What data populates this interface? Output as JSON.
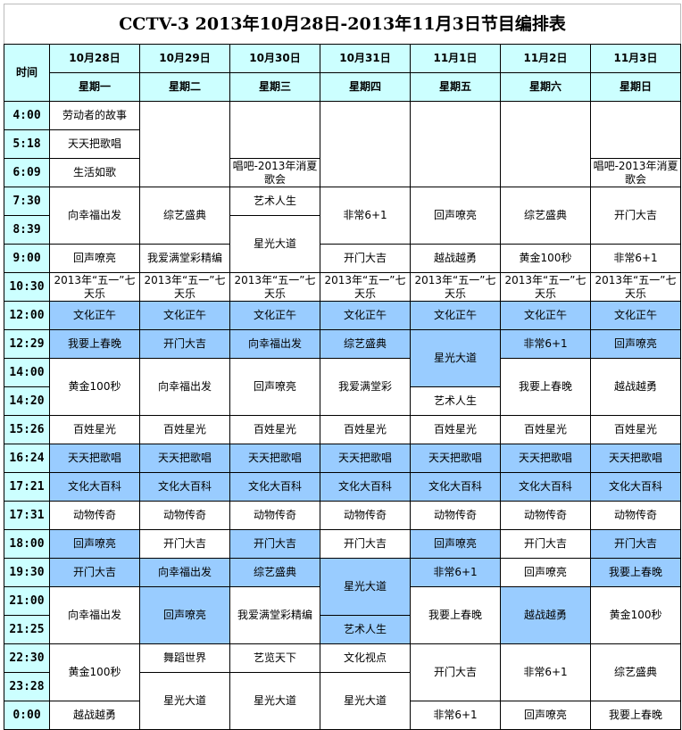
{
  "title": "CCTV-3  2013年10月28日-2013年11月3日节目编排表",
  "time_header": "时间",
  "dates": [
    "10月28日",
    "10月29日",
    "10月30日",
    "10月31日",
    "11月1日",
    "11月2日",
    "11月3日"
  ],
  "weekdays": [
    "星期一",
    "星期二",
    "星期三",
    "星期四",
    "星期五",
    "星期六",
    "星期日"
  ],
  "colors": {
    "header": "#ccffff",
    "highlight": "#99ccff"
  },
  "times": [
    "4:00",
    "5:18",
    "6:09",
    "7:30",
    "8:39",
    "9:00",
    "10:30",
    "12:00",
    "12:29",
    "14:00",
    "14:20",
    "15:26",
    "16:24",
    "17:21",
    "17:31",
    "18:00",
    "19:30",
    "21:00",
    "21:25",
    "22:30",
    "23:28",
    "0:00"
  ],
  "columns": [
    [
      {
        "text": "劳动者的故事",
        "slots": 1
      },
      {
        "text": "天天把歌唱",
        "slots": 1
      },
      {
        "text": "生活如歌",
        "slots": 1
      },
      {
        "text": "向幸福出发",
        "slots": 2
      },
      {
        "text": "回声嘹亮",
        "slots": 1
      },
      {
        "text": "2013年“五一”七天乐",
        "slots": 1
      },
      {
        "text": "文化正午",
        "slots": 1,
        "highlight": true
      },
      {
        "text": "我要上春晚",
        "slots": 1,
        "highlight": true
      },
      {
        "text": "黄金100秒",
        "slots": 2
      },
      {
        "text": "百姓星光",
        "slots": 1
      },
      {
        "text": "天天把歌唱",
        "slots": 1,
        "highlight": true
      },
      {
        "text": "文化大百科",
        "slots": 1,
        "highlight": true
      },
      {
        "text": "动物传奇",
        "slots": 1
      },
      {
        "text": "回声嘹亮",
        "slots": 1,
        "highlight": true
      },
      {
        "text": "开门大吉",
        "slots": 1,
        "highlight": true
      },
      {
        "text": "向幸福出发",
        "slots": 2
      },
      {
        "text": "黄金100秒",
        "slots": 2
      },
      {
        "text": "越战越勇",
        "slots": 1
      }
    ],
    [
      {
        "text": "",
        "slots": 3
      },
      {
        "text": "综艺盛典",
        "slots": 2
      },
      {
        "text": "我爱满堂彩精编",
        "slots": 1
      },
      {
        "text": "2013年“五一”七天乐",
        "slots": 1
      },
      {
        "text": "文化正午",
        "slots": 1,
        "highlight": true
      },
      {
        "text": "开门大吉",
        "slots": 1,
        "highlight": true
      },
      {
        "text": "向幸福出发",
        "slots": 2
      },
      {
        "text": "百姓星光",
        "slots": 1
      },
      {
        "text": "天天把歌唱",
        "slots": 1,
        "highlight": true
      },
      {
        "text": "文化大百科",
        "slots": 1,
        "highlight": true
      },
      {
        "text": "动物传奇",
        "slots": 1
      },
      {
        "text": "开门大吉",
        "slots": 1
      },
      {
        "text": "向幸福出发",
        "slots": 1,
        "highlight": true
      },
      {
        "text": "回声嘹亮",
        "slots": 2,
        "highlight": true
      },
      {
        "text": "舞蹈世界",
        "slots": 1
      },
      {
        "text": "星光大道",
        "slots": 2
      }
    ],
    [
      {
        "text": "",
        "slots": 2
      },
      {
        "text": "唱吧-2013年消夏歌会",
        "slots": 1
      },
      {
        "text": "艺术人生",
        "slots": 1
      },
      {
        "text": "星光大道",
        "slots": 2
      },
      {
        "text": "2013年“五一”七天乐",
        "slots": 1
      },
      {
        "text": "文化正午",
        "slots": 1,
        "highlight": true
      },
      {
        "text": "向幸福出发",
        "slots": 1,
        "highlight": true
      },
      {
        "text": "回声嘹亮",
        "slots": 2
      },
      {
        "text": "百姓星光",
        "slots": 1
      },
      {
        "text": "天天把歌唱",
        "slots": 1,
        "highlight": true
      },
      {
        "text": "文化大百科",
        "slots": 1,
        "highlight": true
      },
      {
        "text": "动物传奇",
        "slots": 1
      },
      {
        "text": "开门大吉",
        "slots": 1,
        "highlight": true
      },
      {
        "text": "综艺盛典",
        "slots": 1,
        "highlight": true
      },
      {
        "text": "我爱满堂彩精编",
        "slots": 2
      },
      {
        "text": "艺览天下",
        "slots": 1
      },
      {
        "text": "星光大道",
        "slots": 2
      }
    ],
    [
      {
        "text": "",
        "slots": 3
      },
      {
        "text": "非常6+1",
        "slots": 2
      },
      {
        "text": "开门大吉",
        "slots": 1
      },
      {
        "text": "2013年“五一”七天乐",
        "slots": 1
      },
      {
        "text": "文化正午",
        "slots": 1,
        "highlight": true
      },
      {
        "text": "综艺盛典",
        "slots": 1,
        "highlight": true
      },
      {
        "text": "我爱满堂彩",
        "slots": 2
      },
      {
        "text": "百姓星光",
        "slots": 1
      },
      {
        "text": "天天把歌唱",
        "slots": 1,
        "highlight": true
      },
      {
        "text": "文化大百科",
        "slots": 1,
        "highlight": true
      },
      {
        "text": "动物传奇",
        "slots": 1
      },
      {
        "text": "开门大吉",
        "slots": 1
      },
      {
        "text": "星光大道",
        "slots": 2,
        "highlight": true
      },
      {
        "text": "艺术人生",
        "slots": 1,
        "highlight": true
      },
      {
        "text": "文化视点",
        "slots": 1
      },
      {
        "text": "星光大道",
        "slots": 2
      }
    ],
    [
      {
        "text": "",
        "slots": 3
      },
      {
        "text": "回声嘹亮",
        "slots": 2
      },
      {
        "text": "越战越勇",
        "slots": 1
      },
      {
        "text": "2013年“五一”七天乐",
        "slots": 1
      },
      {
        "text": "文化正午",
        "slots": 1,
        "highlight": true
      },
      {
        "text": "星光大道",
        "slots": 2,
        "highlight": true
      },
      {
        "text": "艺术人生",
        "slots": 1
      },
      {
        "text": "百姓星光",
        "slots": 1
      },
      {
        "text": "天天把歌唱",
        "slots": 1,
        "highlight": true
      },
      {
        "text": "文化大百科",
        "slots": 1,
        "highlight": true
      },
      {
        "text": "动物传奇",
        "slots": 1
      },
      {
        "text": "回声嘹亮",
        "slots": 1,
        "highlight": true
      },
      {
        "text": "非常6+1",
        "slots": 1,
        "highlight": true
      },
      {
        "text": "我要上春晚",
        "slots": 2
      },
      {
        "text": "开门大吉",
        "slots": 2
      },
      {
        "text": "非常6+1",
        "slots": 1
      }
    ],
    [
      {
        "text": "",
        "slots": 3
      },
      {
        "text": "综艺盛典",
        "slots": 2
      },
      {
        "text": "黄金100秒",
        "slots": 1
      },
      {
        "text": "2013年“五一”七天乐",
        "slots": 1
      },
      {
        "text": "文化正午",
        "slots": 1,
        "highlight": true
      },
      {
        "text": "非常6+1",
        "slots": 1,
        "highlight": true
      },
      {
        "text": "我要上春晚",
        "slots": 2
      },
      {
        "text": "百姓星光",
        "slots": 1
      },
      {
        "text": "天天把歌唱",
        "slots": 1,
        "highlight": true
      },
      {
        "text": "文化大百科",
        "slots": 1,
        "highlight": true
      },
      {
        "text": "动物传奇",
        "slots": 1
      },
      {
        "text": "开门大吉",
        "slots": 1
      },
      {
        "text": "回声嘹亮",
        "slots": 1
      },
      {
        "text": "越战越勇",
        "slots": 2,
        "highlight": true
      },
      {
        "text": "非常6+1",
        "slots": 2
      },
      {
        "text": "回声嘹亮",
        "slots": 1
      }
    ],
    [
      {
        "text": "",
        "slots": 2
      },
      {
        "text": "唱吧-2013年消夏歌会",
        "slots": 1
      },
      {
        "text": "开门大吉",
        "slots": 2
      },
      {
        "text": "非常6+1",
        "slots": 1
      },
      {
        "text": "2013年“五一”七天乐",
        "slots": 1
      },
      {
        "text": "文化正午",
        "slots": 1,
        "highlight": true
      },
      {
        "text": "回声嘹亮",
        "slots": 1,
        "highlight": true
      },
      {
        "text": "越战越勇",
        "slots": 2
      },
      {
        "text": "百姓星光",
        "slots": 1
      },
      {
        "text": "天天把歌唱",
        "slots": 1,
        "highlight": true
      },
      {
        "text": "文化大百科",
        "slots": 1,
        "highlight": true
      },
      {
        "text": "动物传奇",
        "slots": 1
      },
      {
        "text": "开门大吉",
        "slots": 1,
        "highlight": true
      },
      {
        "text": "我要上春晚",
        "slots": 1,
        "highlight": true
      },
      {
        "text": "黄金100秒",
        "slots": 2
      },
      {
        "text": "综艺盛典",
        "slots": 2
      },
      {
        "text": "我要上春晚",
        "slots": 1
      }
    ]
  ]
}
